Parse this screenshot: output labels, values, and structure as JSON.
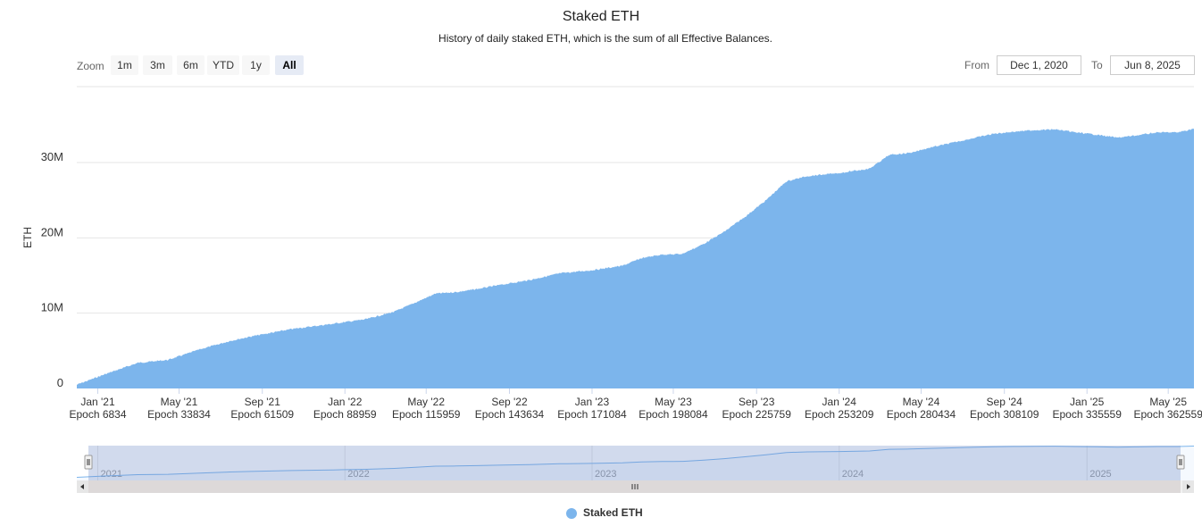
{
  "header": {
    "title": "Staked ETH",
    "subtitle": "History of daily staked ETH, which is the sum of all Effective Balances."
  },
  "zoom": {
    "label": "Zoom",
    "buttons": [
      "1m",
      "3m",
      "6m",
      "YTD",
      "1y",
      "All"
    ],
    "active": "All"
  },
  "range": {
    "from_label": "From",
    "from_value": "Dec 1, 2020",
    "to_label": "To",
    "to_value": "Jun 8, 2025"
  },
  "legend": {
    "label": "Staked ETH"
  },
  "colors": {
    "series": "#7cb5ec",
    "navigator_mask": "rgba(102,133,194,0.3)"
  },
  "navigator": {
    "year_labels": [
      "2021",
      "2022",
      "2023",
      "2024",
      "2025"
    ],
    "handle_icon": "grip-icon",
    "scroll_left_icon": "arrow-left-icon",
    "scroll_right_icon": "arrow-right-icon"
  },
  "chart_data": {
    "type": "area",
    "title": "Staked ETH",
    "subtitle": "History of daily staked ETH, which is the sum of all Effective Balances.",
    "ylabel": "ETH",
    "ylim": [
      0,
      40000000
    ],
    "yticks": [
      0,
      10000000,
      20000000,
      30000000
    ],
    "ytick_labels": [
      "0",
      "10M",
      "20M",
      "30M"
    ],
    "xlim": [
      "2020-12-01",
      "2025-06-08"
    ],
    "xticks": [
      {
        "date": "2021-01-01",
        "label": "Jan '21",
        "epoch": "Epoch 6834"
      },
      {
        "date": "2021-05-01",
        "label": "May '21",
        "epoch": "Epoch 33834"
      },
      {
        "date": "2021-09-01",
        "label": "Sep '21",
        "epoch": "Epoch 61509"
      },
      {
        "date": "2022-01-01",
        "label": "Jan '22",
        "epoch": "Epoch 88959"
      },
      {
        "date": "2022-05-01",
        "label": "May '22",
        "epoch": "Epoch 115959"
      },
      {
        "date": "2022-09-01",
        "label": "Sep '22",
        "epoch": "Epoch 143634"
      },
      {
        "date": "2023-01-01",
        "label": "Jan '23",
        "epoch": "Epoch 171084"
      },
      {
        "date": "2023-05-01",
        "label": "May '23",
        "epoch": "Epoch 198084"
      },
      {
        "date": "2023-09-01",
        "label": "Sep '23",
        "epoch": "Epoch 225759"
      },
      {
        "date": "2024-01-01",
        "label": "Jan '24",
        "epoch": "Epoch 253209"
      },
      {
        "date": "2024-05-01",
        "label": "May '24",
        "epoch": "Epoch 280434"
      },
      {
        "date": "2024-09-01",
        "label": "Sep '24",
        "epoch": "Epoch 308109"
      },
      {
        "date": "2025-01-01",
        "label": "Jan '25",
        "epoch": "Epoch 335559"
      },
      {
        "date": "2025-05-01",
        "label": "May '25",
        "epoch": "Epoch 362559"
      }
    ],
    "grid": true,
    "legend_position": "bottom-center",
    "series": [
      {
        "name": "Staked ETH",
        "x": [
          "2020-12-01",
          "2021-01-15",
          "2021-03-01",
          "2021-04-15",
          "2021-06-01",
          "2021-07-15",
          "2021-08-15",
          "2021-10-15",
          "2021-12-15",
          "2022-02-01",
          "2022-03-15",
          "2022-04-15",
          "2022-05-15",
          "2022-06-15",
          "2022-07-15",
          "2022-08-15",
          "2022-10-01",
          "2022-11-15",
          "2023-01-01",
          "2023-02-15",
          "2023-03-15",
          "2023-04-15",
          "2023-05-01",
          "2023-05-15",
          "2023-06-15",
          "2023-07-15",
          "2023-08-15",
          "2023-09-15",
          "2023-10-15",
          "2023-11-15",
          "2024-01-01",
          "2024-02-15",
          "2024-03-15",
          "2024-04-15",
          "2024-05-15",
          "2024-06-15",
          "2024-07-15",
          "2024-08-15",
          "2024-09-15",
          "2024-10-15",
          "2024-11-15",
          "2024-12-15",
          "2025-01-15",
          "2025-02-15",
          "2025-03-15",
          "2025-04-15",
          "2025-05-15",
          "2025-06-08"
        ],
        "values": [
          500000,
          2000000,
          3400000,
          3800000,
          5200000,
          6300000,
          6900000,
          7900000,
          8600000,
          9200000,
          10200000,
          11400000,
          12600000,
          12800000,
          13200000,
          13700000,
          14400000,
          15300000,
          15700000,
          16300000,
          17300000,
          17800000,
          17800000,
          17900000,
          19200000,
          20800000,
          22800000,
          25000000,
          27500000,
          28200000,
          28600000,
          29200000,
          31000000,
          31300000,
          32000000,
          32600000,
          33200000,
          33800000,
          34100000,
          34300000,
          34400000,
          34000000,
          33700000,
          33300000,
          33600000,
          34000000,
          34000000,
          34500000
        ]
      }
    ]
  }
}
